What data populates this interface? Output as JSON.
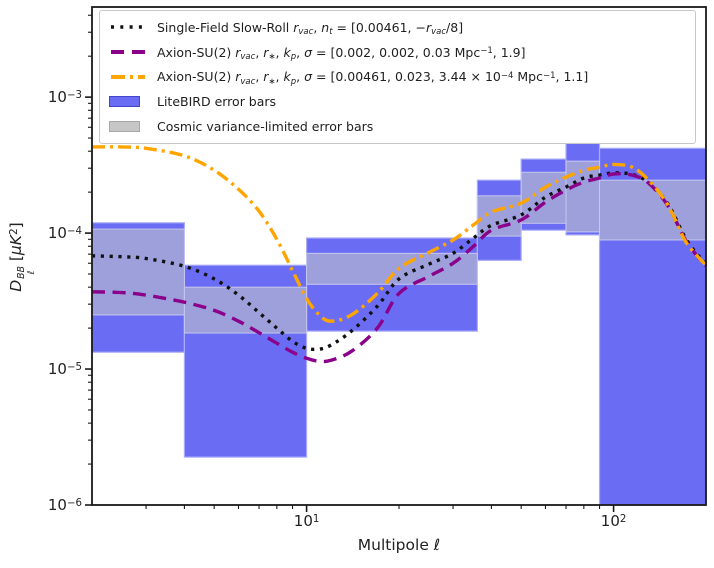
{
  "figure": {
    "xlabel_segments": [
      {
        "t": "Multipole "
      },
      {
        "t": "ℓ",
        "i": 1
      }
    ],
    "ylabel_segments": [
      {
        "t": "D",
        "i": 1
      },
      {
        "top": "BB",
        "bottom": "ℓ"
      },
      {
        "t": " ["
      },
      {
        "t": "μK",
        "i": 1
      },
      {
        "t": "2",
        "sp": 1
      },
      {
        "t": "]"
      }
    ],
    "x_ticks": [
      {
        "base": "10",
        "exp": "1",
        "value": 10
      },
      {
        "base": "10",
        "exp": "2",
        "value": 100
      }
    ],
    "y_ticks": [
      {
        "base": "10",
        "exp": "−3",
        "value": 0.001
      },
      {
        "base": "10",
        "exp": "−4",
        "value": 0.0001
      },
      {
        "base": "10",
        "exp": "−5",
        "value": 1e-05
      },
      {
        "base": "10",
        "exp": "−6",
        "value": 1e-06
      }
    ]
  },
  "legend": {
    "items": [
      {
        "linestyle": "dotted",
        "color": "#111111",
        "segments": [
          {
            "t": "Single-Field Slow-Roll "
          },
          {
            "t": "r",
            "i": 1
          },
          {
            "t": "vac",
            "sb": 1,
            "i": 1
          },
          {
            "t": ", "
          },
          {
            "t": "n",
            "i": 1
          },
          {
            "t": "t",
            "sb": 1,
            "i": 1
          },
          {
            "t": " = [0.00461, −"
          },
          {
            "t": "r",
            "i": 1
          },
          {
            "t": "vac",
            "sb": 1,
            "i": 1
          },
          {
            "t": "/8]"
          }
        ]
      },
      {
        "linestyle": "dashed",
        "color": "#8b008b",
        "segments": [
          {
            "t": "Axion-SU(2) "
          },
          {
            "t": "r",
            "i": 1
          },
          {
            "t": "vac",
            "sb": 1,
            "i": 1
          },
          {
            "t": ", "
          },
          {
            "t": "r",
            "i": 1
          },
          {
            "t": "∗",
            "sb": 1
          },
          {
            "t": ", "
          },
          {
            "t": "k",
            "i": 1
          },
          {
            "t": "p",
            "sb": 1,
            "i": 1
          },
          {
            "t": ", "
          },
          {
            "t": "σ",
            "i": 1
          },
          {
            "t": " = [0.002, 0.002, 0.03 Mpc"
          },
          {
            "t": "−1",
            "sp": 1
          },
          {
            "t": ", 1.9]"
          }
        ]
      },
      {
        "linestyle": "dashdot",
        "color": "#ffa500",
        "segments": [
          {
            "t": "Axion-SU(2) "
          },
          {
            "t": "r",
            "i": 1
          },
          {
            "t": "vac",
            "sb": 1,
            "i": 1
          },
          {
            "t": ", "
          },
          {
            "t": "r",
            "i": 1
          },
          {
            "t": "∗",
            "sb": 1
          },
          {
            "t": ", "
          },
          {
            "t": "k",
            "i": 1
          },
          {
            "t": "p",
            "sb": 1,
            "i": 1
          },
          {
            "t": ", "
          },
          {
            "t": "σ",
            "i": 1
          },
          {
            "t": " = [0.00461, 0.023, 3.44 × 10"
          },
          {
            "t": "−4",
            "sp": 1
          },
          {
            "t": " Mpc"
          },
          {
            "t": "−1",
            "sp": 1
          },
          {
            "t": ", 1.1]"
          }
        ]
      },
      {
        "swatch": "litebird",
        "label": "LiteBIRD error bars"
      },
      {
        "swatch": "cv",
        "label": "Cosmic variance-limited error bars"
      }
    ]
  },
  "chart_data": {
    "type": "line",
    "title": "",
    "xlabel": "Multipole ℓ",
    "ylabel": "D_ℓ^BB [μK^2]",
    "xscale": "log",
    "yscale": "log",
    "xlim": [
      2,
      200
    ],
    "ylim": [
      1e-06,
      0.0046
    ],
    "grid": false,
    "legend_position": "upper left",
    "x": [
      2,
      2.5,
      3,
      4,
      5,
      6,
      7,
      8,
      9,
      10,
      11,
      12,
      14,
      17,
      20,
      25,
      30,
      35,
      40,
      50,
      60,
      70,
      80,
      90,
      100,
      115,
      130,
      150,
      170,
      185,
      200
    ],
    "series": [
      {
        "name": "Single-Field Slow-Roll r_vac, n_t = [0.00461, -r_vac/8]",
        "color": "#111111",
        "linestyle": "dotted",
        "values": [
          6.8e-05,
          6.7e-05,
          6.5e-05,
          5.7e-05,
          4.6e-05,
          3.5e-05,
          2.6e-05,
          2e-05,
          1.6e-05,
          1.42e-05,
          1.4e-05,
          1.5e-05,
          1.9e-05,
          2.9e-05,
          4.6e-05,
          5.9e-05,
          7.1e-05,
          9.2e-05,
          0.000114,
          0.000136,
          0.000184,
          0.000218,
          0.000254,
          0.000267,
          0.000277,
          0.00027,
          0.000235,
          0.000165,
          9.5e-05,
          7.2e-05,
          6e-05
        ]
      },
      {
        "name": "Axion-SU(2) r_vac, r_*, k_p, sigma = [0.002, 0.002, 0.03 Mpc^-1, 1.9]",
        "color": "#8b008b",
        "linestyle": "dashed",
        "values": [
          3.7e-05,
          3.65e-05,
          3.5e-05,
          3.1e-05,
          2.7e-05,
          2.25e-05,
          1.85e-05,
          1.55e-05,
          1.33e-05,
          1.2e-05,
          1.14e-05,
          1.16e-05,
          1.35e-05,
          2e-05,
          3.6e-05,
          4.8e-05,
          6e-05,
          8e-05,
          0.000105,
          0.000125,
          0.000169,
          0.000207,
          0.000237,
          0.000254,
          0.000272,
          0.000267,
          0.000233,
          0.00016,
          9.2e-05,
          7e-05,
          5.7e-05
        ]
      },
      {
        "name": "Axion-SU(2) r_vac, r_*, k_p, sigma = [0.00461, 0.023, 3.44e-4 Mpc^-1, 1.1]",
        "color": "#ffa500",
        "linestyle": "dashdot",
        "values": [
          0.00043,
          0.00043,
          0.00042,
          0.00037,
          0.00029,
          0.00021,
          0.000145,
          9e-05,
          5.3e-05,
          3.3e-05,
          2.5e-05,
          2.25e-05,
          2.5e-05,
          3.6e-05,
          5.5e-05,
          7.2e-05,
          8.9e-05,
          0.000115,
          0.000143,
          0.000166,
          0.000218,
          0.000258,
          0.00029,
          0.000305,
          0.00032,
          0.000305,
          0.000245,
          0.000162,
          9e-05,
          7e-05,
          5.8e-05
        ]
      }
    ],
    "error_bins": [
      {
        "ell_range": [
          2,
          4
        ],
        "litebird": [
          1.33e-05,
          0.000119
        ],
        "cosmic_variance": [
          2.5e-05,
          0.000107
        ]
      },
      {
        "ell_range": [
          4,
          10
        ],
        "litebird": [
          2.25e-06,
          5.8e-05
        ],
        "cosmic_variance": [
          1.84e-05,
          4e-05
        ]
      },
      {
        "ell_range": [
          10,
          36
        ],
        "litebird": [
          1.9e-05,
          9.2e-05
        ],
        "cosmic_variance": [
          4.2e-05,
          7.1e-05
        ]
      },
      {
        "ell_range": [
          36,
          50
        ],
        "litebird": [
          6.3e-05,
          0.000245
        ],
        "cosmic_variance": [
          9.5e-05,
          0.000188
        ]
      },
      {
        "ell_range": [
          50,
          70
        ],
        "litebird": [
          0.000105,
          0.00035
        ],
        "cosmic_variance": [
          0.000118,
          0.00028
        ]
      },
      {
        "ell_range": [
          70,
          90
        ],
        "litebird": [
          9.7e-05,
          0.00046
        ],
        "cosmic_variance": [
          0.000102,
          0.000338
        ]
      },
      {
        "ell_range": [
          90,
          200
        ],
        "litebird": [
          1e-06,
          0.00042
        ],
        "cosmic_variance": [
          8.9e-05,
          0.000245
        ]
      }
    ],
    "colors": {
      "litebird_fill": "#6a6df4",
      "litebird_border": "#a9abf7",
      "cv_fill_over_litebird": "#9da0db",
      "cv_border": "#c6c7ee",
      "cv_legend_fill": "#c6c6c6",
      "cv_legend_border": "#a8a8a8",
      "litebird_legend_border": "#4345c8",
      "axis": "#1a1a1a"
    }
  }
}
